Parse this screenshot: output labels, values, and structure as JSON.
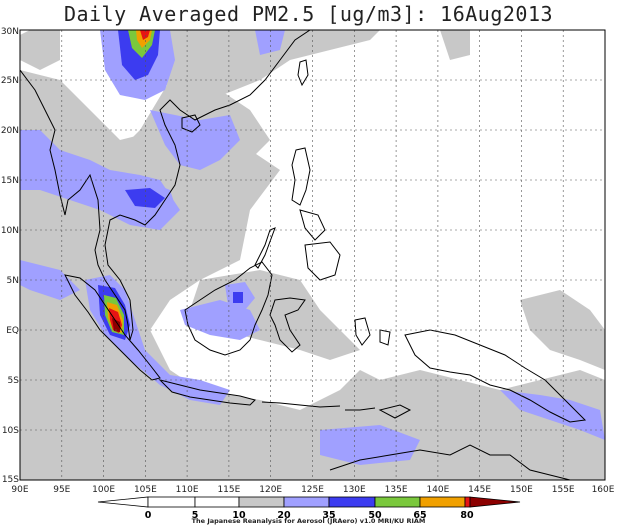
{
  "title": "Daily Averaged PM2.5 [ug/m3]: 16Aug2013",
  "credit": "The Japanese Reanalysis for Aerosol (JRAero) v1.0 MRI/KU RIAM",
  "map": {
    "lon_range": [
      90,
      160
    ],
    "lat_range": [
      -15,
      30
    ],
    "grid_lines": "dashed",
    "x_ticks": [
      "90E",
      "95E",
      "100E",
      "105E",
      "110E",
      "115E",
      "120E",
      "125E",
      "130E",
      "135E",
      "140E",
      "145E",
      "150E",
      "155E",
      "160E"
    ],
    "y_ticks": [
      "30N",
      "25N",
      "20N",
      "15N",
      "10N",
      "5N",
      "EQ",
      "5S",
      "10S",
      "15S"
    ]
  },
  "colorbar": {
    "levels": [
      "0",
      "5",
      "10",
      "20",
      "35",
      "50",
      "65",
      "80"
    ],
    "colors": [
      "#ffffff",
      "#ffffff",
      "#c8c8c8",
      "#a0a0ff",
      "#3c3cf0",
      "#7ac83c",
      "#f0a000",
      "#e61414",
      "#8c0000"
    ]
  }
}
